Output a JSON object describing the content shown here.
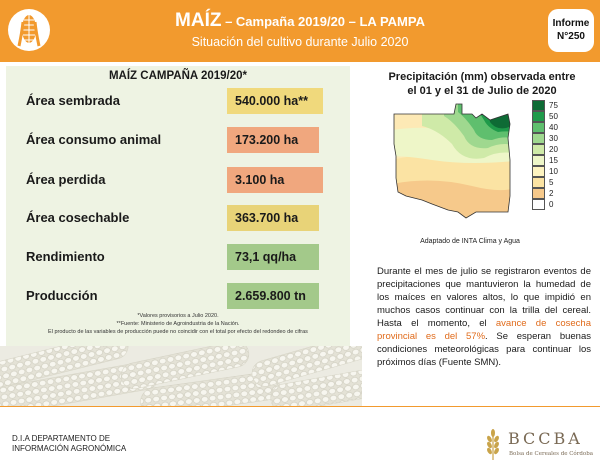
{
  "header": {
    "title_main": "MAÍZ",
    "title_rest": " – Campaña 2019/20 – LA PAMPA",
    "subtitle": "Situación del cultivo durante Julio 2020",
    "informe_label": "Informe",
    "informe_number": "N°250",
    "logo_icon": "corn-icon"
  },
  "summary": {
    "title": "MAÍZ CAMPAÑA 2019/20*",
    "rows": [
      {
        "label": "Área sembrada",
        "value": "540.000 ha**",
        "color": "#f0d97c"
      },
      {
        "label": "Área consumo animal",
        "value": "173.200 ha",
        "color": "#f0a77e"
      },
      {
        "label": "Área perdida",
        "value": "3.100 ha",
        "color": "#f0a77e"
      },
      {
        "label": "Área cosechable",
        "value": "363.700 ha",
        "color": "#e8d378"
      },
      {
        "label": "Rendimiento",
        "value": "73,1 qq/ha",
        "color": "#a3c98a"
      },
      {
        "label": "Producción",
        "value": "2.659.800 tn",
        "color": "#a3c98a"
      }
    ],
    "note1": "*Valores provisorios a Julio 2020.",
    "note2": "**Fuente: Ministerio de Agroindustria de la Nación.",
    "note3": "El producto de las variables de producción puede no coincidir con el total por efecto del redondeo de cifras"
  },
  "map": {
    "title_line1": "Precipitación (mm) observada entre",
    "title_line2": "el 01 y el 31 de Julio de 2020",
    "caption": "Adaptado de INTA Clima y Agua",
    "legend": [
      {
        "label": "75",
        "color": "#0e6b35"
      },
      {
        "label": "50",
        "color": "#1f9a4a"
      },
      {
        "label": "40",
        "color": "#5fbf6e"
      },
      {
        "label": "30",
        "color": "#9fd88f"
      },
      {
        "label": "20",
        "color": "#cfeaa8"
      },
      {
        "label": "15",
        "color": "#eef6c8"
      },
      {
        "label": "10",
        "color": "#fdf3c0"
      },
      {
        "label": "5",
        "color": "#fbe3a3"
      },
      {
        "label": "2",
        "color": "#f6c98b"
      },
      {
        "label": "0",
        "color": "#ffffff"
      }
    ]
  },
  "description": {
    "part1": "Durante el mes de julio se registraron eventos de precipitaciones que mantuvieron la humedad de los maíces en valores altos, lo que impidió en muchos casos continuar con la trilla del cereal. Hasta el momento, el ",
    "highlight": "avance de cosecha provincial es del 57%",
    "part2": ". Se esperan buenas condiciones meteorológicas para continuar los próximos días (Fuente SMN)."
  },
  "footer": {
    "dept_line1": "D.I.A DEPARTAMENTO DE",
    "dept_line2": "INFORMACIÓN AGRONÓMICA",
    "org_name": "BCCBA",
    "org_sub": "Bolsa de Cereales de Córdoba",
    "org_icon": "wheat-icon"
  }
}
